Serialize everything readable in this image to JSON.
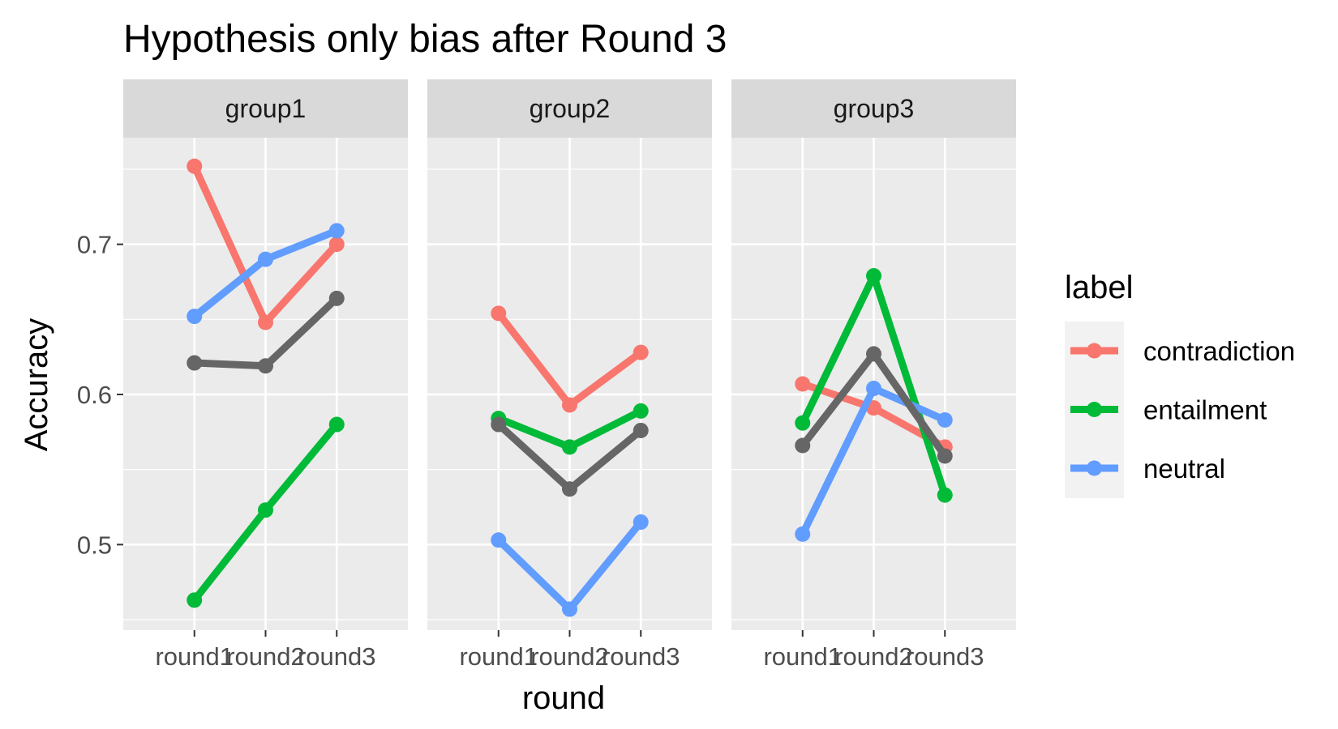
{
  "chart_data": {
    "type": "line",
    "title": "Hypothesis only bias after Round 3",
    "xlabel": "round",
    "ylabel": "Accuracy",
    "categories": [
      "round1",
      "round2",
      "round3"
    ],
    "ylim": [
      0.443,
      0.771
    ],
    "yticks": [
      0.5,
      0.6,
      0.7
    ],
    "ytick_labels": [
      "0.5",
      "0.6",
      "0.7"
    ],
    "grid": true,
    "legend": {
      "title": "label",
      "position": "right",
      "entries": [
        {
          "name": "contradiction",
          "color": "#F8766D"
        },
        {
          "name": "entailment",
          "color": "#00BA38"
        },
        {
          "name": "neutral",
          "color": "#619CFF"
        }
      ]
    },
    "panels": [
      {
        "name": "group1",
        "series": [
          {
            "name": "contradiction",
            "color": "#F8766D",
            "values": [
              0.752,
              0.648,
              0.7
            ]
          },
          {
            "name": "entailment",
            "color": "#00BA38",
            "values": [
              0.463,
              0.523,
              0.58
            ]
          },
          {
            "name": "neutral",
            "color": "#619CFF",
            "values": [
              0.652,
              0.69,
              0.709
            ]
          },
          {
            "color": "#666666",
            "values": [
              0.621,
              0.619,
              0.664
            ]
          }
        ]
      },
      {
        "name": "group2",
        "series": [
          {
            "name": "contradiction",
            "color": "#F8766D",
            "values": [
              0.654,
              0.593,
              0.628
            ]
          },
          {
            "name": "entailment",
            "color": "#00BA38",
            "values": [
              0.584,
              0.565,
              0.589
            ]
          },
          {
            "name": "neutral",
            "color": "#619CFF",
            "values": [
              0.503,
              0.457,
              0.515
            ]
          },
          {
            "color": "#666666",
            "values": [
              0.58,
              0.537,
              0.576
            ]
          }
        ]
      },
      {
        "name": "group3",
        "series": [
          {
            "name": "contradiction",
            "color": "#F8766D",
            "values": [
              0.607,
              0.591,
              0.565
            ]
          },
          {
            "name": "entailment",
            "color": "#00BA38",
            "values": [
              0.581,
              0.679,
              0.533
            ]
          },
          {
            "name": "neutral",
            "color": "#619CFF",
            "values": [
              0.507,
              0.604,
              0.583
            ]
          },
          {
            "color": "#666666",
            "values": [
              0.566,
              0.627,
              0.559
            ]
          }
        ]
      }
    ]
  }
}
